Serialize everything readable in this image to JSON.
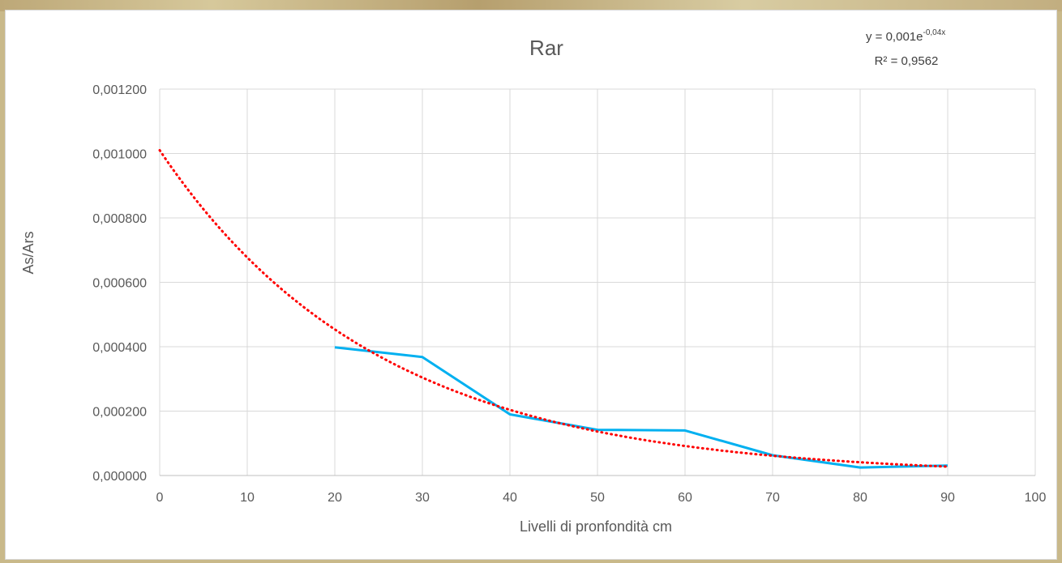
{
  "chart_data": {
    "type": "line",
    "title": "Rar",
    "xlabel": "Livelli di pronfondità cm",
    "ylabel": "As/Ars",
    "xlim": [
      0,
      100
    ],
    "ylim": [
      0,
      0.0012
    ],
    "x_ticks": [
      "0",
      "10",
      "20",
      "30",
      "40",
      "50",
      "60",
      "70",
      "80",
      "90",
      "100"
    ],
    "x_tick_values": [
      0,
      10,
      20,
      30,
      40,
      50,
      60,
      70,
      80,
      90,
      100
    ],
    "y_ticks": [
      "0,000000",
      "0,000200",
      "0,000400",
      "0,000600",
      "0,000800",
      "0,001000",
      "0,001200"
    ],
    "y_tick_values": [
      0,
      0.0002,
      0.0004,
      0.0006,
      0.0008,
      0.001,
      0.0012
    ],
    "grid": true,
    "legend": "none",
    "series": [
      {
        "x": [
          20,
          30,
          40,
          50,
          60,
          70,
          80,
          90
        ],
        "values": [
          0.000398,
          0.000368,
          0.00019,
          0.000142,
          0.00014,
          6.3e-05,
          2.5e-05,
          3.1e-05
        ],
        "color": "#00B0F0",
        "style": "solid"
      }
    ],
    "trendline": {
      "type": "exponential",
      "a": 0.00101,
      "b": -0.04,
      "x_range": [
        0,
        90
      ],
      "color": "#FF0000",
      "style": "dotted"
    },
    "annotation": {
      "equation_prefix": "y = 0,001e",
      "equation_exponent": "-0,04x",
      "r_squared": "R² = 0,9562"
    }
  }
}
